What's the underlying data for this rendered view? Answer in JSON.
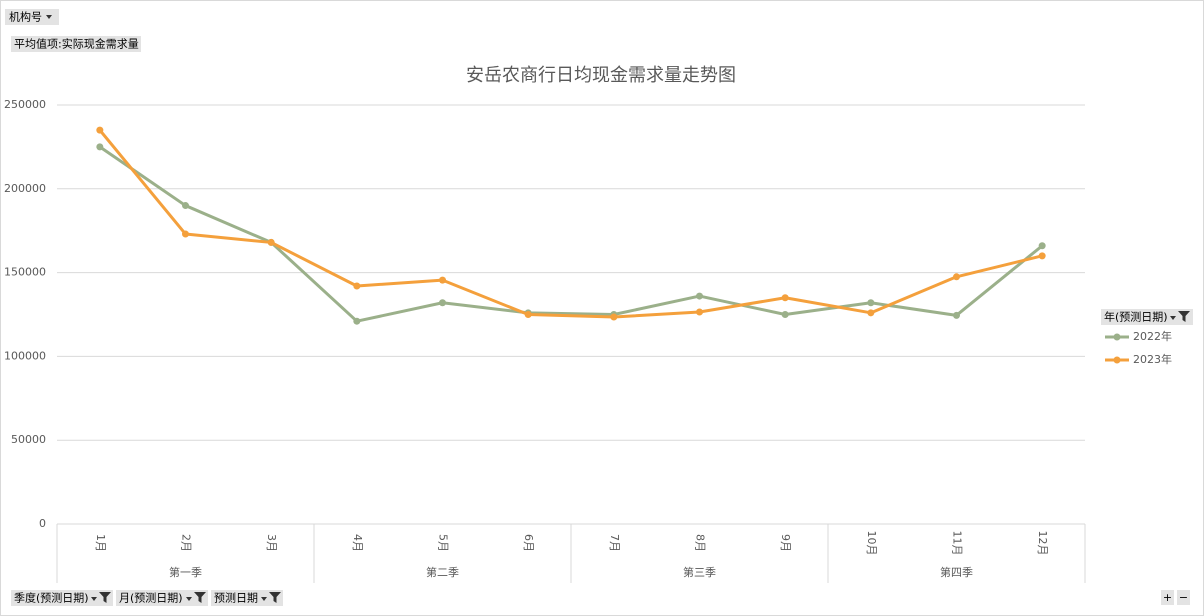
{
  "chart_data": {
    "type": "line",
    "title": "安岳农商行日均现金需求量走势图",
    "categories": [
      "1月",
      "2月",
      "3月",
      "4月",
      "5月",
      "6月",
      "7月",
      "8月",
      "9月",
      "10月",
      "11月",
      "12月"
    ],
    "groups": [
      "第一季",
      "第二季",
      "第三季",
      "第四季"
    ],
    "series": [
      {
        "name": "2022年",
        "color": "#9bb08a",
        "values": [
          225000,
          190000,
          168000,
          121000,
          132000,
          126000,
          125000,
          136000,
          125000,
          132000,
          124500,
          166000
        ]
      },
      {
        "name": "2023年",
        "color": "#f4a03c",
        "values": [
          235000,
          173000,
          168000,
          142000,
          145500,
          125000,
          123500,
          126500,
          135000,
          126000,
          147500,
          160000
        ]
      }
    ],
    "ylim": [
      0,
      250000
    ],
    "yticks": [
      0,
      50000,
      100000,
      150000,
      200000,
      250000
    ],
    "grid": true,
    "legend_title": "年(预测日期)",
    "legend": "right"
  },
  "pivot": {
    "filter_field": "机构号",
    "value_field": "平均值项:实际现金需求量",
    "axis_fields": [
      "季度(预测日期)",
      "月(预测日期)",
      "预测日期"
    ],
    "zoom": [
      "+",
      "−"
    ]
  }
}
